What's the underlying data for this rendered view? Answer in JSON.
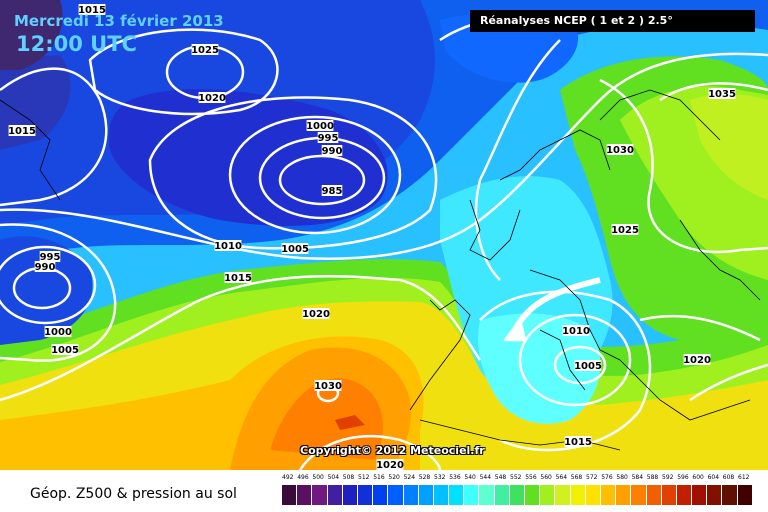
{
  "header": {
    "date": "Mercredi 13 février 2013",
    "time": "12:00 UTC",
    "source": "Réanalyses NCEP ( 1 et 2 ) 2.5°",
    "copyright": "Copyright© 2012 Meteociel.fr"
  },
  "footer": {
    "title": "Géop. Z500 & pression au sol"
  },
  "isobar_labels": [
    {
      "id": "l1025a",
      "text": "1025"
    },
    {
      "id": "l1020a",
      "text": "1020"
    },
    {
      "id": "l1015a",
      "text": "1015"
    },
    {
      "id": "l1015b",
      "text": "1015"
    },
    {
      "id": "l1000a",
      "text": "1000"
    },
    {
      "id": "l995a",
      "text": "995"
    },
    {
      "id": "l990a",
      "text": "990"
    },
    {
      "id": "l985",
      "text": "985"
    },
    {
      "id": "l995b",
      "text": "995"
    },
    {
      "id": "l990b",
      "text": "990"
    },
    {
      "id": "l1010a",
      "text": "1010"
    },
    {
      "id": "l1005a",
      "text": "1005"
    },
    {
      "id": "l1015c",
      "text": "1015"
    },
    {
      "id": "l1020b",
      "text": "1020"
    },
    {
      "id": "l1000b",
      "text": "1000"
    },
    {
      "id": "l1005b",
      "text": "1005"
    },
    {
      "id": "l1030a",
      "text": "1030"
    },
    {
      "id": "l1035",
      "text": "1035"
    },
    {
      "id": "l1030b",
      "text": "1030"
    },
    {
      "id": "l1025b",
      "text": "1025"
    },
    {
      "id": "l1010b",
      "text": "1010"
    },
    {
      "id": "l1005c",
      "text": "1005"
    },
    {
      "id": "l1020c",
      "text": "1020"
    },
    {
      "id": "l1015d",
      "text": "1015"
    },
    {
      "id": "l1020d",
      "text": "1020"
    }
  ],
  "scale": {
    "values": [
      "492",
      "496",
      "500",
      "504",
      "508",
      "512",
      "516",
      "520",
      "524",
      "528",
      "532",
      "536",
      "540",
      "544",
      "548",
      "552",
      "556",
      "560",
      "564",
      "568",
      "572",
      "576",
      "580",
      "584",
      "588",
      "592",
      "596",
      "600",
      "604",
      "608",
      "612"
    ],
    "colors": [
      "#3a0a3a",
      "#5a1060",
      "#701a80",
      "#4020a0",
      "#2020c0",
      "#1030d8",
      "#0040f0",
      "#0060ff",
      "#0080ff",
      "#00a0ff",
      "#00c0ff",
      "#00e0ff",
      "#40ffff",
      "#60ffd0",
      "#40f0a0",
      "#40e060",
      "#60e020",
      "#a0f020",
      "#d0f020",
      "#f0f000",
      "#ffe000",
      "#ffc000",
      "#ffa000",
      "#ff8000",
      "#f06000",
      "#e04000",
      "#c02000",
      "#a01000",
      "#801000",
      "#601000",
      "#400000"
    ]
  }
}
